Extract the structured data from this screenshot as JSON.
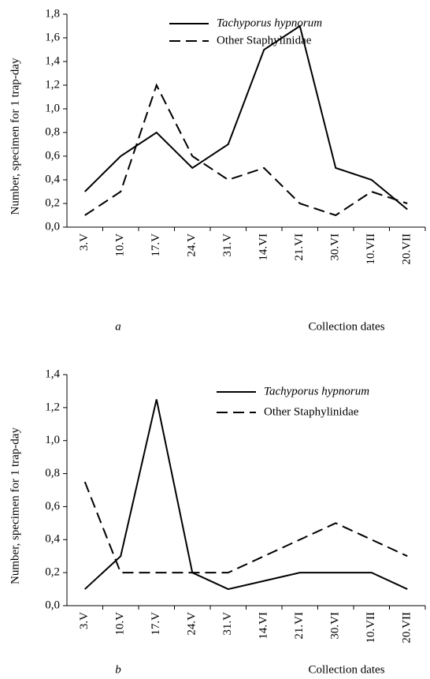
{
  "chart_data": [
    {
      "type": "line",
      "panel_label": "a",
      "xlabel": "Collection dates",
      "ylabel": "Number, specimen for 1 trap-day",
      "categories": [
        "3.V",
        "10.V",
        "17.V",
        "24.V",
        "31.V",
        "14.VI",
        "21.VI",
        "30.VI",
        "10.VII",
        "20.VII"
      ],
      "series": [
        {
          "name": "Tachyporus hypnorum",
          "color": "#000000",
          "style": "solid",
          "italic": true,
          "values": [
            0.3,
            0.6,
            0.8,
            0.5,
            0.7,
            1.5,
            1.7,
            0.5,
            0.4,
            0.15
          ]
        },
        {
          "name": "Other Staphylinidae",
          "color": "#000000",
          "style": "dashed",
          "italic": false,
          "values": [
            0.1,
            0.3,
            1.2,
            0.6,
            0.4,
            0.5,
            0.2,
            0.1,
            0.3,
            0.2
          ]
        }
      ],
      "ylim": [
        0,
        1.8
      ],
      "yticks": [
        {
          "value": 0,
          "label": "0,0"
        },
        {
          "value": 0.2,
          "label": "0,2"
        },
        {
          "value": 0.4,
          "label": "0,4"
        },
        {
          "value": 0.6,
          "label": "0,6"
        },
        {
          "value": 0.8,
          "label": "0,8"
        },
        {
          "value": 1.0,
          "label": "1,0"
        },
        {
          "value": 1.2,
          "label": "1,2"
        },
        {
          "value": 1.4,
          "label": "1,4"
        },
        {
          "value": 1.6,
          "label": "1,6"
        },
        {
          "value": 1.8,
          "label": "1,8"
        }
      ],
      "legend": "top"
    },
    {
      "type": "line",
      "panel_label": "b",
      "xlabel": "Collection dates",
      "ylabel": "Number, specimen for 1 trap-day",
      "categories": [
        "3.V",
        "10.V",
        "17.V",
        "24.V",
        "31.V",
        "14.VI",
        "21.VI",
        "30.VI",
        "10.VII",
        "20.VII"
      ],
      "series": [
        {
          "name": "Tachyporus hypnorum",
          "color": "#000000",
          "style": "solid",
          "italic": true,
          "values": [
            0.1,
            0.3,
            1.25,
            0.2,
            0.1,
            0.15,
            0.2,
            0.2,
            0.2,
            0.1
          ]
        },
        {
          "name": "Other Staphylinidae",
          "color": "#000000",
          "style": "dashed",
          "italic": false,
          "values": [
            0.75,
            0.2,
            0.2,
            0.2,
            0.2,
            0.3,
            0.4,
            0.5,
            0.4,
            0.3
          ]
        }
      ],
      "ylim": [
        0,
        1.4
      ],
      "yticks": [
        {
          "value": 0,
          "label": "0,0"
        },
        {
          "value": 0.2,
          "label": "0,2"
        },
        {
          "value": 0.4,
          "label": "0,4"
        },
        {
          "value": 0.6,
          "label": "0,6"
        },
        {
          "value": 0.8,
          "label": "0,8"
        },
        {
          "value": 1.0,
          "label": "1,0"
        },
        {
          "value": 1.2,
          "label": "1,2"
        },
        {
          "value": 1.4,
          "label": "1,4"
        }
      ],
      "legend": "top-right"
    }
  ]
}
